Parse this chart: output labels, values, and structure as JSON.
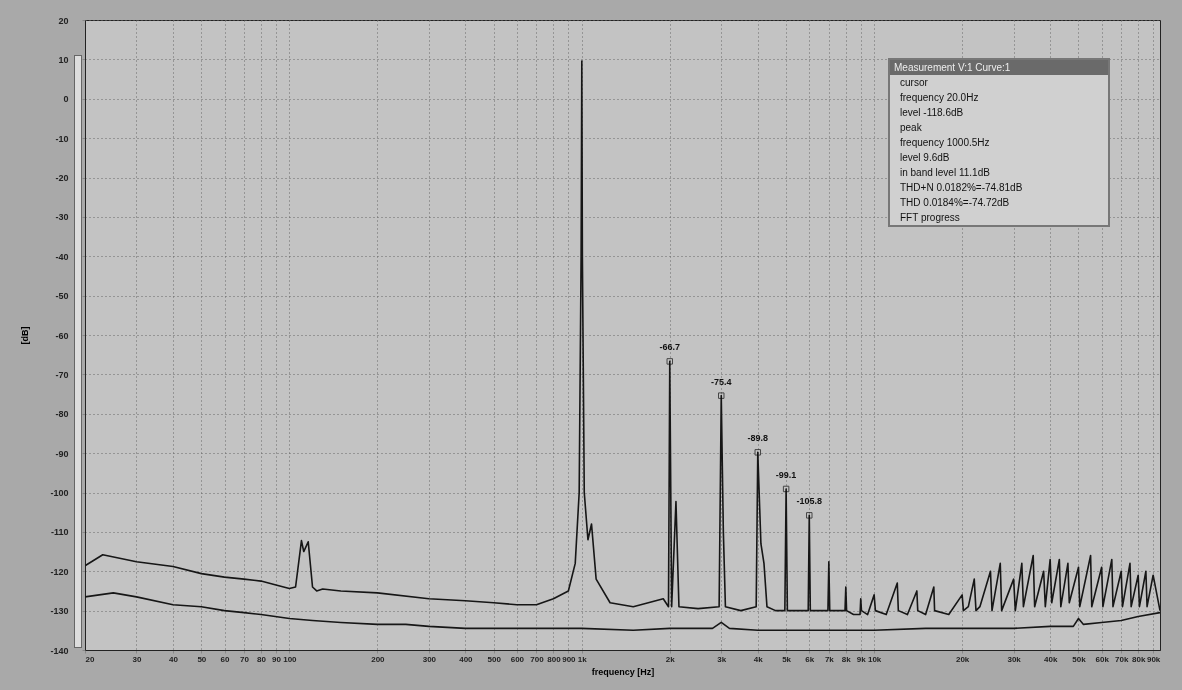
{
  "chart_data": {
    "type": "line",
    "xlabel": "frequency [Hz]",
    "ylabel": "[dB]",
    "log": "x",
    "grid": true,
    "line_style": "solid",
    "xlim": [
      20,
      95000
    ],
    "ylim": [
      -140,
      20
    ],
    "xticks": [
      20,
      30,
      40,
      50,
      60,
      70,
      80,
      90,
      100,
      200,
      300,
      400,
      500,
      600,
      700,
      800,
      900,
      {
        "value": 1000,
        "label": "1k"
      },
      {
        "value": 2000,
        "label": "2k"
      },
      {
        "value": 3000,
        "label": "3k"
      },
      {
        "value": 4000,
        "label": "4k"
      },
      {
        "value": 5000,
        "label": "5k"
      },
      {
        "value": 6000,
        "label": "6k"
      },
      {
        "value": 7000,
        "label": "7k"
      },
      {
        "value": 8000,
        "label": "8k"
      },
      {
        "value": 9000,
        "label": "9k"
      },
      {
        "value": 10000,
        "label": "10k"
      },
      {
        "value": 20000,
        "label": "20k"
      },
      {
        "value": 30000,
        "label": "30k"
      },
      {
        "value": 40000,
        "label": "40k"
      },
      {
        "value": 50000,
        "label": "50k"
      },
      {
        "value": 60000,
        "label": "60k"
      },
      {
        "value": 70000,
        "label": "70k"
      },
      {
        "value": 80000,
        "label": "80k"
      },
      {
        "value": 90000,
        "label": "90k"
      }
    ],
    "yticks": [
      20,
      10,
      0,
      -10,
      -20,
      -30,
      -40,
      -50,
      -60,
      -70,
      -80,
      -90,
      -100,
      -110,
      -120,
      -130,
      -140
    ],
    "series": [
      {
        "color": "#161616",
        "x": [
          20,
          23,
          30,
          40,
          50,
          60,
          70,
          80,
          90,
          100,
          105,
          110,
          112,
          116,
          120,
          124,
          130,
          150,
          200,
          300,
          400,
          500,
          600,
          700,
          800,
          900,
          950,
          980,
          995,
          1000.5,
          1005,
          1020,
          1050,
          1080,
          1120,
          1250,
          1500,
          1900,
          1980,
          2000,
          2030,
          2100,
          2150,
          2500,
          2950,
          3000,
          3050,
          3100,
          3500,
          3950,
          4000,
          4100,
          4200,
          4300,
          4600,
          4950,
          5000,
          5050,
          5500,
          5950,
          6000,
          6050,
          6500,
          6950,
          7000,
          7050,
          7500,
          7950,
          8000,
          8050,
          8500,
          8950,
          9000,
          9050,
          9500,
          10000,
          10100,
          11000,
          12000,
          12100,
          13000,
          14000,
          14100,
          15000,
          16000,
          16100,
          18000,
          20000,
          20200,
          21000,
          22000,
          22300,
          23000,
          25000,
          25300,
          27000,
          27300,
          30000,
          30400,
          32000,
          32400,
          35000,
          35400,
          38000,
          38500,
          40000,
          40500,
          43000,
          43500,
          46000,
          46500,
          50000,
          50500,
          55000,
          55500,
          60000,
          60600,
          65000,
          65600,
          70000,
          70700,
          75000,
          75700,
          80000,
          80800,
          85000,
          85800,
          90000,
          95000
        ],
        "values": [
          -118.6,
          -115.8,
          -117.6,
          -118.8,
          -120.6,
          -121.5,
          -122,
          -122.5,
          -123.5,
          -124.4,
          -124,
          -112.2,
          -115,
          -112.5,
          -124,
          -125,
          -124.5,
          -125,
          -125.5,
          -127,
          -127.5,
          -128,
          -128.5,
          -128.5,
          -127,
          -125,
          -118,
          -100,
          -40,
          9.6,
          -40,
          -100,
          -112,
          -108,
          -122,
          -128,
          -129,
          -127,
          -129,
          -66.7,
          -129,
          -102.3,
          -129,
          -129.5,
          -129,
          -75.4,
          -110,
          -129,
          -130,
          -129,
          -89.8,
          -113,
          -118,
          -129,
          -130,
          -130,
          -99.1,
          -130,
          -130,
          -130,
          -105.8,
          -130,
          -130,
          -130,
          -117.6,
          -130,
          -130,
          -130,
          -124,
          -130,
          -131,
          -131,
          -127,
          -130,
          -131,
          -126,
          -130,
          -131,
          -123,
          -130,
          -131,
          -125,
          -130,
          -131,
          -124,
          -130,
          -131,
          -126,
          -130,
          -129,
          -122,
          -130,
          -129,
          -120,
          -130,
          -118,
          -130,
          -122,
          -130,
          -118,
          -129,
          -116,
          -129,
          -120,
          -129,
          -117,
          -128,
          -117,
          -129,
          -118,
          -128,
          -119,
          -129,
          -116,
          -129,
          -119,
          -129,
          -117,
          -129,
          -120,
          -129,
          -118,
          -129,
          -121,
          -129,
          -120,
          -129,
          -121,
          -130
        ]
      },
      {
        "color": "#161616",
        "x": [
          20,
          25,
          30,
          40,
          50,
          60,
          70,
          80,
          100,
          120,
          150,
          200,
          250,
          300,
          400,
          500,
          700,
          1000,
          1500,
          2000,
          2800,
          3000,
          3200,
          4000,
          5000,
          7000,
          10000,
          15000,
          20000,
          30000,
          40000,
          48000,
          50000,
          52000,
          60000,
          70000,
          80000,
          95000
        ],
        "values": [
          -126.5,
          -125.5,
          -126.5,
          -128.5,
          -129,
          -130,
          -130.5,
          -131,
          -132,
          -132.5,
          -133,
          -133.5,
          -133.5,
          -134,
          -134.5,
          -134.5,
          -134.5,
          -134.5,
          -135,
          -134.5,
          -134.5,
          -133,
          -134.5,
          -135,
          -135,
          -135,
          -135,
          -134.5,
          -134.5,
          -134.5,
          -134,
          -134,
          -132,
          -133.5,
          -133,
          -132.5,
          -131.5,
          -130.5
        ]
      }
    ],
    "annotations": [
      "Measurement V:1 Curve:1",
      "cursor",
      "frequency 20.0Hz",
      "level -118.6dB",
      "peak",
      "frequency 1000.5Hz",
      "level 9.6dB",
      "in band level 11.1dB",
      "THD+N 0.0182%=-74.81dB",
      "THD 0.0184%=-74.72dB",
      "FFT progress",
      {
        "text": "-66.7",
        "x": 2000,
        "y": -66.7
      },
      {
        "text": "-75.4",
        "x": 3000,
        "y": -75.4
      },
      {
        "text": "-89.8",
        "x": 4000,
        "y": -89.8
      },
      {
        "text": "-99.1",
        "x": 5000,
        "y": -99.1
      },
      {
        "text": "-105.8",
        "x": 6000,
        "y": -105.8
      }
    ]
  }
}
